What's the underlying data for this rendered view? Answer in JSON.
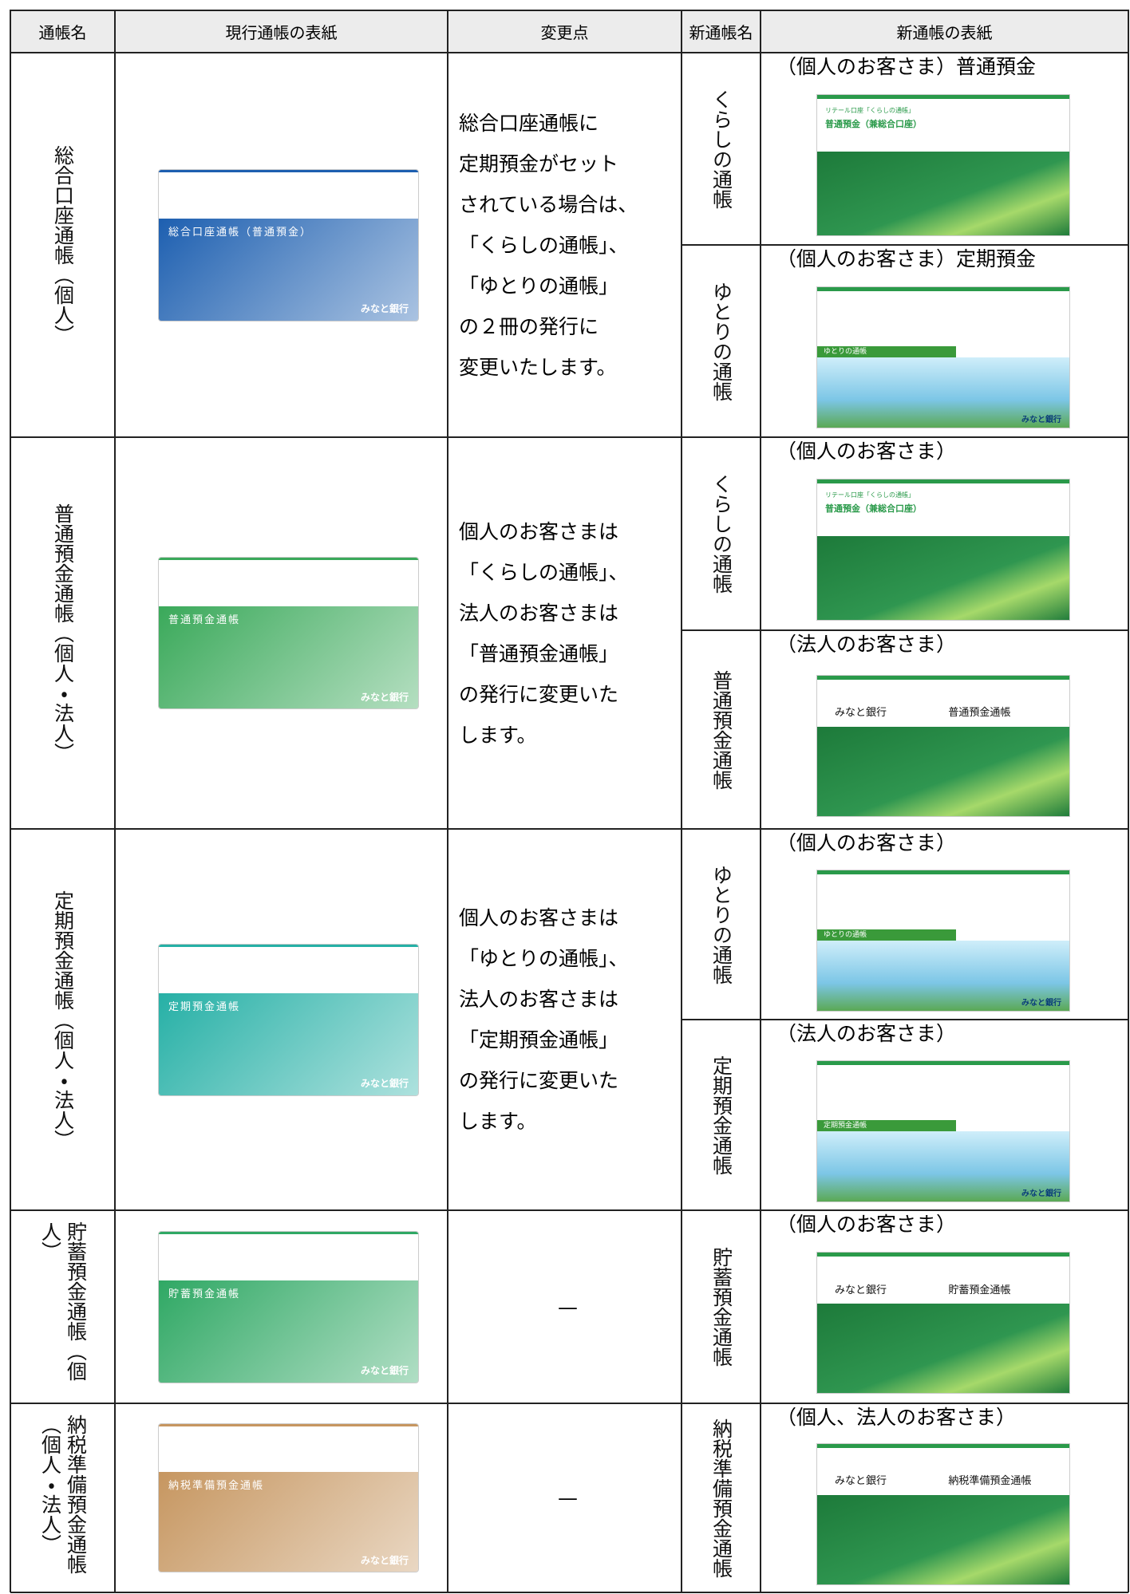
{
  "header": [
    "通帳名",
    "現行通帳の表紙",
    "変更点",
    "新通帳名",
    "新通帳の表紙"
  ],
  "rows": [
    {
      "name": "総合口座通帳（個人）",
      "current": {
        "title": "総合口座通帳（普通預金）",
        "bank": "みなと銀行"
      },
      "change": [
        "総合口座通帳に",
        "定期預金がセット",
        "されている場合は、",
        "「くらしの通帳」、",
        "「ゆとりの通帳」",
        "の２冊の発行に",
        "変更いたします。"
      ],
      "new": [
        {
          "name": "くらしの通帳",
          "caption": "（個人のお客さま）普通預金",
          "cover": {
            "label": "リテール口座「くらしの通帳」",
            "title": "普通預金（兼総合口座）"
          }
        },
        {
          "name": "ゆとりの通帳",
          "caption": "（個人のお客さま）定期預金",
          "cover": {
            "title": "ゆとりの通帳",
            "bank": "みなと銀行"
          }
        }
      ]
    },
    {
      "name": "普通預金通帳（個人・法人）",
      "current": {
        "title": "普通預金通帳",
        "bank": "みなと銀行"
      },
      "change": [
        "個人のお客さまは",
        "「くらしの通帳」、",
        "法人のお客さまは",
        "「普通預金通帳」",
        "の発行に変更いた",
        "します。"
      ],
      "new": [
        {
          "name": "くらしの通帳",
          "caption": "（個人のお客さま）",
          "cover": {
            "label": "リテール口座「くらしの通帳」",
            "title": "普通預金（兼総合口座）"
          }
        },
        {
          "name": "普通預金通帳",
          "caption": "（法人のお客さま）",
          "cover": {
            "bank": "みなと銀行",
            "title": "普通預金通帳"
          }
        }
      ]
    },
    {
      "name": "定期預金通帳（個人・法人）",
      "current": {
        "title": "定期預金通帳",
        "bank": "みなと銀行"
      },
      "change": [
        "個人のお客さまは",
        "「ゆとりの通帳」、",
        "法人のお客さまは",
        "「定期預金通帳」",
        "の発行に変更いた",
        "します。"
      ],
      "new": [
        {
          "name": "ゆとりの通帳",
          "caption": "（個人のお客さま）",
          "cover": {
            "title": "ゆとりの通帳",
            "bank": "みなと銀行"
          }
        },
        {
          "name": "定期預金通帳",
          "caption": "（法人のお客さま）",
          "cover": {
            "title": "定期預金通帳",
            "bank": "みなと銀行"
          }
        }
      ]
    },
    {
      "name": "貯蓄預金通帳（個人）",
      "current": {
        "title": "貯蓄預金通帳",
        "bank": "みなと銀行"
      },
      "change": [
        "—"
      ],
      "new": [
        {
          "name": "貯蓄預金通帳",
          "caption": "（個人のお客さま）",
          "cover": {
            "bank": "みなと銀行",
            "title": "貯蓄預金通帳"
          }
        }
      ]
    },
    {
      "name": "納税準備預金通帳（個人・法人）",
      "current": {
        "title": "納税準備預金通帳",
        "bank": "みなと銀行"
      },
      "change": [
        "—"
      ],
      "new": [
        {
          "name": "納税準備預金通帳",
          "caption": "（個人、法人のお客さま）",
          "cover": {
            "bank": "みなと銀行",
            "title": "納税準備預金通帳"
          }
        }
      ]
    }
  ]
}
